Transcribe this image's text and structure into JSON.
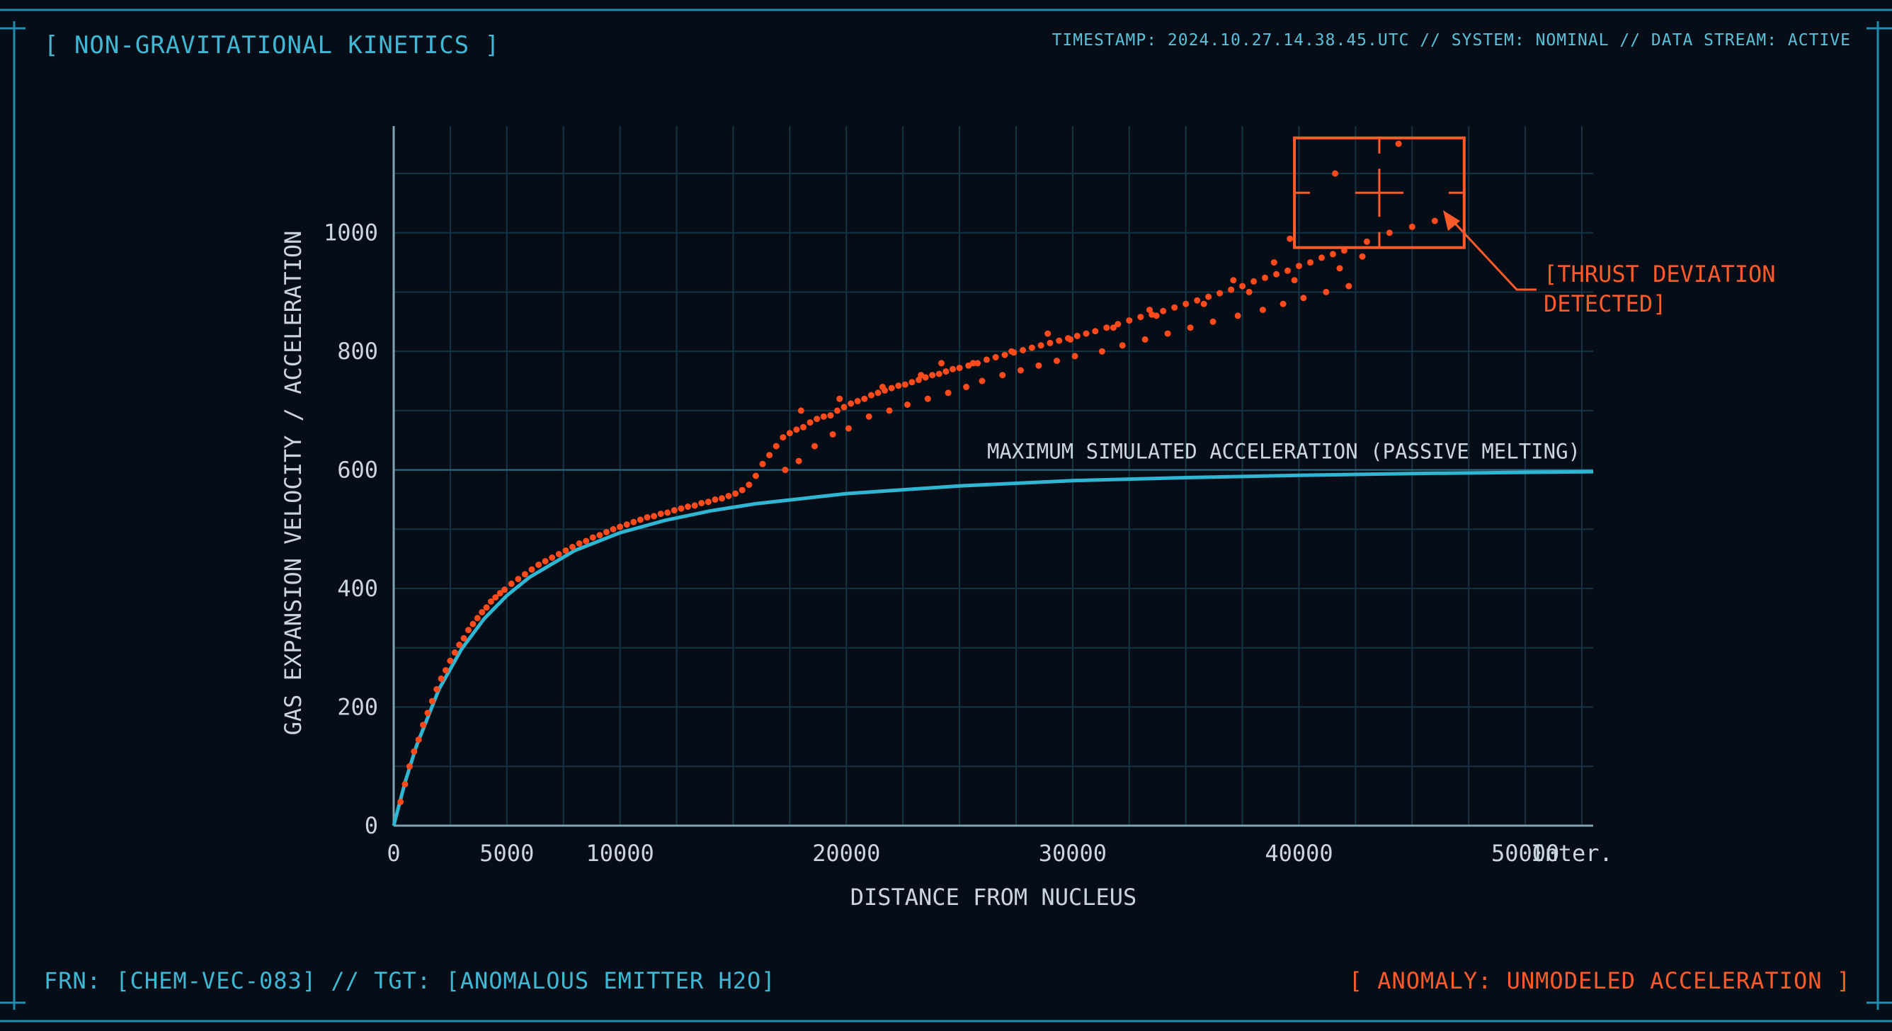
{
  "header": {
    "title": "[ NON-GRAVITATIONAL KINETICS ]",
    "status": "TIMESTAMP: 2024.10.27.14.38.45.UTC // SYSTEM: NOMINAL // DATA STREAM: ACTIVE"
  },
  "footer": {
    "frn": "FRN: [CHEM-VEC-083] // TGT: [ANOMALOUS EMITTER H2O]",
    "anomaly": "[ ANOMALY: UNMODELED ACCELERATION ]"
  },
  "colors": {
    "background": "#060d16",
    "frame": "#1f8fb0",
    "grid": "#123445",
    "axis": "#7fa3b3",
    "curve": "#2fb6d2",
    "points": "#ff4a1c",
    "annotation": "#ff5a2a",
    "text": "#c9d6df"
  },
  "chart_data": {
    "type": "scatter",
    "title": "",
    "xlabel": "DISTANCE FROM NUCLEUS",
    "ylabel": "GAS EXPANSION VELOCITY / ACCELERATION",
    "xlim": [
      0,
      53000
    ],
    "ylim": [
      0,
      1180
    ],
    "x_ticks": [
      0,
      5000,
      10000,
      20000,
      30000,
      40000,
      50000
    ],
    "x_tick_labels": [
      "0",
      "5000",
      "10000",
      "20000",
      "30000",
      "40000",
      "50000"
    ],
    "x_extra_label": "Inter.",
    "y_ticks": [
      0,
      200,
      400,
      600,
      800,
      1000
    ],
    "y_tick_labels": [
      "0",
      "200",
      "400",
      "600",
      "800",
      "1000"
    ],
    "grid": true,
    "model_curve": {
      "label": "MAXIMUM SIMULATED ACCELERATION (PASSIVE MELTING)",
      "asymptote": 600,
      "x": [
        0,
        500,
        1000,
        2000,
        3000,
        4000,
        5000,
        6000,
        8000,
        10000,
        12000,
        14000,
        16000,
        20000,
        25000,
        30000,
        35000,
        40000,
        45000,
        53000
      ],
      "y": [
        0,
        73,
        134,
        230,
        298,
        349,
        388,
        419,
        464,
        494,
        515,
        531,
        543,
        560,
        573,
        582,
        587,
        591,
        594,
        597
      ]
    },
    "series": [
      {
        "x": [
          300,
          500,
          700,
          900,
          1100,
          1300,
          1500,
          1700,
          1900,
          2100,
          2300,
          2500,
          2700,
          2900,
          3100,
          3300,
          3500,
          3700,
          3900,
          4100,
          4300,
          4500,
          4700,
          4900,
          5200,
          5500,
          5800,
          6100,
          6400,
          6700,
          7000,
          7300,
          7600,
          7900,
          8200,
          8500,
          8800,
          9100,
          9400,
          9700,
          10000,
          10300,
          10600,
          10900,
          11200,
          11500,
          11800,
          12100,
          12400,
          12700,
          13000,
          13300,
          13600,
          13900,
          14200,
          14500,
          14800,
          15100,
          15400,
          15700,
          16000,
          16300,
          16600,
          16900,
          17200,
          17500,
          17800,
          18100,
          18400,
          18700,
          19000,
          19300,
          19600,
          19900,
          20200,
          20500,
          20800,
          21100,
          21400,
          21700,
          22000,
          22300,
          22600,
          22900,
          23200,
          23500,
          23800,
          24100,
          24400,
          24700,
          25000,
          25400,
          25800,
          26200,
          26600,
          27000,
          27400,
          27800,
          28200,
          28600,
          29000,
          29400,
          29800,
          30200,
          30600,
          31000,
          31500,
          32000,
          32500,
          33000,
          33500,
          34000,
          34500,
          35000,
          35500,
          36000,
          36500,
          37000,
          37500,
          38000,
          38500,
          39000,
          39500,
          40000,
          40500,
          41000,
          41500,
          42000,
          43000,
          44000,
          45000,
          46000,
          17300,
          17900,
          18600,
          19400,
          20100,
          21000,
          21900,
          22700,
          23600,
          24500,
          25300,
          26000,
          26900,
          27700,
          28500,
          29300,
          30100,
          31300,
          32200,
          33200,
          34200,
          35200,
          36200,
          37300,
          38400,
          39300,
          40200,
          41200,
          42200,
          18000,
          19700,
          21600,
          23300,
          25600,
          27300,
          29900,
          31800,
          33700,
          35800,
          37800,
          39800,
          41800,
          24200,
          28900,
          33400,
          37100,
          38900,
          39600,
          41600,
          42800,
          44400
        ],
        "y": [
          40,
          70,
          100,
          125,
          145,
          170,
          190,
          210,
          230,
          248,
          262,
          278,
          292,
          305,
          316,
          330,
          340,
          350,
          360,
          368,
          378,
          385,
          392,
          398,
          408,
          416,
          424,
          432,
          440,
          446,
          452,
          458,
          464,
          470,
          476,
          480,
          486,
          490,
          495,
          500,
          504,
          508,
          512,
          516,
          520,
          522,
          526,
          528,
          532,
          535,
          538,
          540,
          544,
          546,
          550,
          552,
          556,
          560,
          566,
          575,
          590,
          610,
          625,
          640,
          655,
          662,
          668,
          672,
          680,
          686,
          690,
          692,
          700,
          706,
          712,
          716,
          720,
          726,
          730,
          734,
          738,
          742,
          744,
          748,
          752,
          756,
          760,
          762,
          766,
          770,
          772,
          776,
          780,
          786,
          790,
          794,
          798,
          802,
          806,
          810,
          814,
          818,
          822,
          826,
          830,
          834,
          840,
          846,
          852,
          858,
          862,
          868,
          874,
          880,
          886,
          892,
          898,
          904,
          910,
          918,
          924,
          930,
          936,
          944,
          950,
          958,
          964,
          970,
          985,
          1000,
          1010,
          1020,
          600,
          615,
          640,
          660,
          670,
          690,
          700,
          710,
          720,
          730,
          740,
          750,
          760,
          768,
          776,
          784,
          792,
          800,
          810,
          820,
          830,
          840,
          850,
          860,
          870,
          880,
          890,
          900,
          910,
          700,
          720,
          740,
          760,
          780,
          800,
          820,
          840,
          860,
          880,
          900,
          920,
          940,
          780,
          830,
          870,
          920,
          950,
          990,
          1100,
          960,
          1150
        ]
      }
    ],
    "annotation": {
      "label_line1": "[THRUST DEVIATION",
      "label_line2": "DETECTED]",
      "box_x": [
        39800,
        47300
      ],
      "box_y": [
        975,
        1160
      ]
    }
  }
}
